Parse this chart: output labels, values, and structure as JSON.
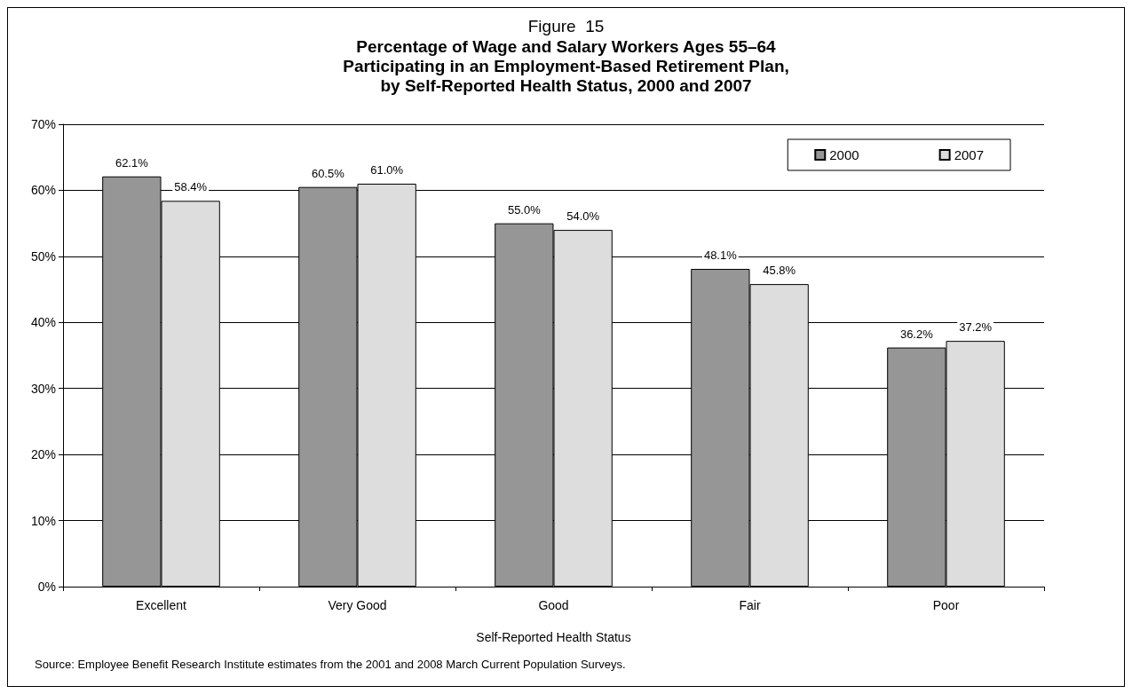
{
  "chart_data": {
    "type": "bar",
    "title": "Figure  15",
    "subtitle": "Percentage of Wage and Salary Workers Ages 55–64\nParticipating in an Employment-Based Retirement Plan,\nby Self-Reported Health Status, 2000 and 2007",
    "xlabel": "Self-Reported Health Status",
    "annotations": [
      "Source: Employee Benefit Research Institute estimates from the 2001 and 2008 March Current Population Surveys."
    ],
    "categories": [
      "Excellent",
      "Very Good",
      "Good",
      "Fair",
      "Poor"
    ],
    "series": [
      {
        "name": "2000",
        "color": "#969696",
        "values": [
          62.1,
          60.5,
          55.0,
          48.1,
          36.2
        ],
        "value_labels": [
          "62.1%",
          "60.5%",
          "55.0%",
          "48.1%",
          "36.2%"
        ]
      },
      {
        "name": "2007",
        "color": "#dddddd",
        "values": [
          58.4,
          61.0,
          54.0,
          45.8,
          37.2
        ],
        "value_labels": [
          "58.4%",
          "61.0%",
          "54.0%",
          "45.8%",
          "37.2%"
        ]
      }
    ],
    "ylim": [
      0,
      70
    ],
    "yticks": [
      {
        "value": 0,
        "label": "0%"
      },
      {
        "value": 10,
        "label": "10%"
      },
      {
        "value": 20,
        "label": "20%"
      },
      {
        "value": 30,
        "label": "30%"
      },
      {
        "value": 40,
        "label": "40%"
      },
      {
        "value": 50,
        "label": "50%"
      },
      {
        "value": 60,
        "label": "60%"
      },
      {
        "value": 70,
        "label": "70%"
      }
    ],
    "grid": "y",
    "legend": "top right"
  }
}
